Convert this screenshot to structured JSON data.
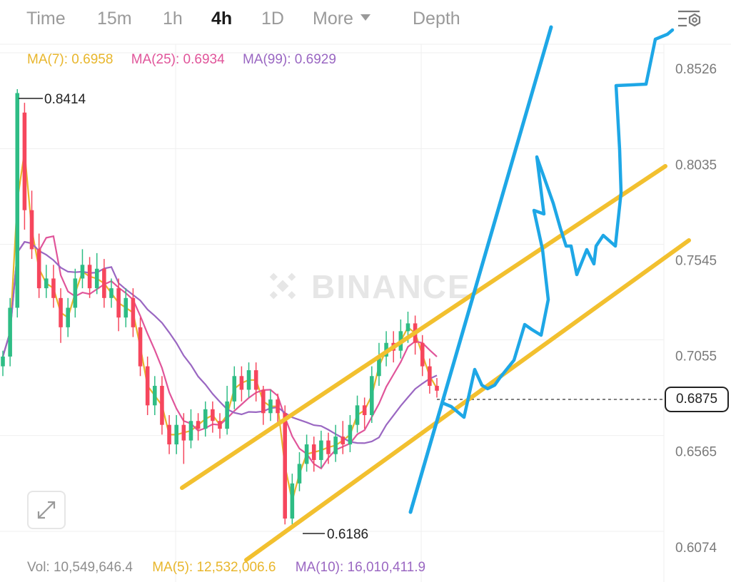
{
  "tabs": [
    {
      "label": "Time",
      "active": false
    },
    {
      "label": "15m",
      "active": false
    },
    {
      "label": "1h",
      "active": false
    },
    {
      "label": "4h",
      "active": true
    },
    {
      "label": "1D",
      "active": false
    },
    {
      "label": "More",
      "active": false
    },
    {
      "label": "Depth",
      "active": false
    }
  ],
  "ma_legend": {
    "ma7": "MA(7): 0.6958",
    "ma25": "MA(25): 0.6934",
    "ma99": "MA(99): 0.6929"
  },
  "volume_legend": {
    "vol": "Vol: 10,549,646.4",
    "ma5": "MA(5): 12,532,006.6",
    "ma10": "MA(10): 16,010,411.9"
  },
  "current_price": "0.6875",
  "watermark": "BINANCE",
  "icons": [
    "chart-settings-icon",
    "expand-icon",
    "binance-logo-icon"
  ],
  "colors": {
    "up": "#2ebd85",
    "down": "#f6465d",
    "ma7": "#e8b62c",
    "ma25": "#e0559a",
    "ma99": "#9a67c2",
    "channel": "#f2c02f",
    "drawing": "#1ea7e6"
  },
  "chart_data": {
    "type": "candlestick",
    "timeframe": "4h",
    "y_ticks": [
      "0.8526",
      "0.8035",
      "0.7545",
      "0.7055",
      "0.6565",
      "0.6074"
    ],
    "ylim": [
      0.6074,
      0.8526
    ],
    "annotations": {
      "high": "0.8414",
      "low": "0.6186"
    },
    "last_price": 0.6875,
    "candles_approx": [
      [
        0.7,
        0.705,
        0.695,
        0.708
      ],
      [
        0.705,
        0.73,
        0.7,
        0.735
      ],
      [
        0.73,
        0.84,
        0.725,
        0.842
      ],
      [
        0.83,
        0.78,
        0.77,
        0.835
      ],
      [
        0.78,
        0.76,
        0.755,
        0.79
      ],
      [
        0.76,
        0.74,
        0.735,
        0.768
      ],
      [
        0.74,
        0.745,
        0.735,
        0.752
      ],
      [
        0.745,
        0.735,
        0.73,
        0.752
      ],
      [
        0.735,
        0.72,
        0.712,
        0.74
      ],
      [
        0.72,
        0.73,
        0.715,
        0.735
      ],
      [
        0.73,
        0.745,
        0.725,
        0.75
      ],
      [
        0.745,
        0.752,
        0.74,
        0.76
      ],
      [
        0.752,
        0.74,
        0.735,
        0.756
      ],
      [
        0.74,
        0.75,
        0.737,
        0.758
      ],
      [
        0.75,
        0.735,
        0.73,
        0.755
      ],
      [
        0.735,
        0.74,
        0.73,
        0.745
      ],
      [
        0.74,
        0.725,
        0.718,
        0.745
      ],
      [
        0.725,
        0.735,
        0.72,
        0.74
      ],
      [
        0.735,
        0.72,
        0.715,
        0.74
      ],
      [
        0.72,
        0.7,
        0.695,
        0.725
      ],
      [
        0.7,
        0.68,
        0.675,
        0.705
      ],
      [
        0.68,
        0.69,
        0.675,
        0.695
      ],
      [
        0.69,
        0.67,
        0.665,
        0.695
      ],
      [
        0.67,
        0.66,
        0.655,
        0.675
      ],
      [
        0.66,
        0.67,
        0.655,
        0.675
      ],
      [
        0.67,
        0.662,
        0.65,
        0.676
      ],
      [
        0.662,
        0.672,
        0.658,
        0.678
      ],
      [
        0.672,
        0.668,
        0.662,
        0.676
      ],
      [
        0.668,
        0.678,
        0.664,
        0.682
      ],
      [
        0.678,
        0.672,
        0.666,
        0.682
      ],
      [
        0.672,
        0.668,
        0.663,
        0.676
      ],
      [
        0.668,
        0.682,
        0.665,
        0.69
      ],
      [
        0.682,
        0.695,
        0.678,
        0.7
      ],
      [
        0.695,
        0.688,
        0.682,
        0.7
      ],
      [
        0.688,
        0.698,
        0.684,
        0.702
      ],
      [
        0.698,
        0.688,
        0.682,
        0.702
      ],
      [
        0.688,
        0.676,
        0.67,
        0.69
      ],
      [
        0.676,
        0.683,
        0.672,
        0.688
      ],
      [
        0.683,
        0.676,
        0.67,
        0.686
      ],
      [
        0.676,
        0.622,
        0.619,
        0.68
      ],
      [
        0.622,
        0.64,
        0.619,
        0.645
      ],
      [
        0.64,
        0.65,
        0.636,
        0.656
      ],
      [
        0.65,
        0.66,
        0.646,
        0.665
      ],
      [
        0.66,
        0.652,
        0.646,
        0.664
      ],
      [
        0.652,
        0.662,
        0.648,
        0.667
      ],
      [
        0.662,
        0.655,
        0.65,
        0.666
      ],
      [
        0.655,
        0.664,
        0.651,
        0.67
      ],
      [
        0.664,
        0.66,
        0.655,
        0.672
      ],
      [
        0.66,
        0.67,
        0.656,
        0.675
      ],
      [
        0.67,
        0.68,
        0.666,
        0.685
      ],
      [
        0.68,
        0.675,
        0.668,
        0.684
      ],
      [
        0.675,
        0.695,
        0.671,
        0.7
      ],
      [
        0.695,
        0.705,
        0.69,
        0.712
      ],
      [
        0.705,
        0.712,
        0.7,
        0.718
      ],
      [
        0.712,
        0.708,
        0.702,
        0.718
      ],
      [
        0.708,
        0.718,
        0.704,
        0.724
      ],
      [
        0.718,
        0.722,
        0.712,
        0.728
      ],
      [
        0.722,
        0.712,
        0.706,
        0.726
      ],
      [
        0.712,
        0.7,
        0.695,
        0.716
      ],
      [
        0.7,
        0.69,
        0.686,
        0.704
      ],
      [
        0.69,
        0.6875,
        0.684,
        0.694
      ]
    ]
  }
}
